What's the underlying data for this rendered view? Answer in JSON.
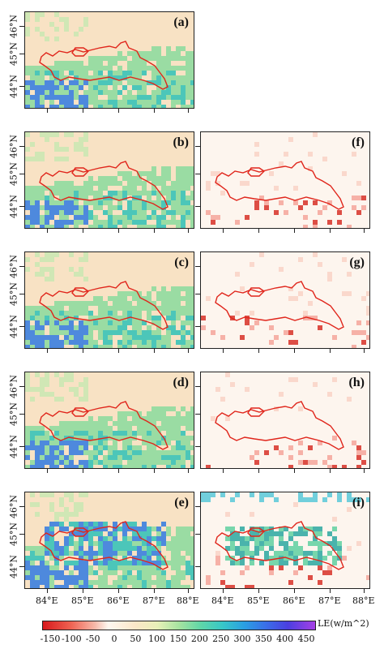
{
  "figure": {
    "panels": [
      {
        "id": "a",
        "label": "(a)",
        "style": "warm-low"
      },
      {
        "id": "b",
        "label": "(b)",
        "style": "warm-low"
      },
      {
        "id": "c",
        "label": "(c)",
        "style": "warm-low"
      },
      {
        "id": "d",
        "label": "(d)",
        "style": "warm-low"
      },
      {
        "id": "e",
        "label": "(e)",
        "style": "warm-high"
      },
      {
        "id": "f",
        "label": "(f)",
        "style": "diff"
      },
      {
        "id": "g",
        "label": "(g)",
        "style": "diff"
      },
      {
        "id": "h",
        "label": "(h)",
        "style": "diff"
      },
      {
        "id": "i",
        "label": "(i)",
        "style": "diff-high"
      }
    ],
    "lat_labels": [
      "46°N",
      "45°N",
      "44°N"
    ],
    "lon_labels": [
      "84°E",
      "85°E",
      "86°E",
      "87°E",
      "88°E"
    ],
    "colorbar": {
      "ticks": [
        "-150",
        "-100",
        "-50",
        "0",
        "50",
        "100",
        "150",
        "200",
        "250",
        "300",
        "350",
        "400",
        "450"
      ],
      "unit": "LE(w/m^2)"
    },
    "colors": {
      "background_warm": "#f8e2c4",
      "green": "#8fdca0",
      "teal": "#39c3b8",
      "blue": "#3b7fe0",
      "outline": "#e0251b",
      "diff_bg": "#fdf5ee"
    }
  }
}
